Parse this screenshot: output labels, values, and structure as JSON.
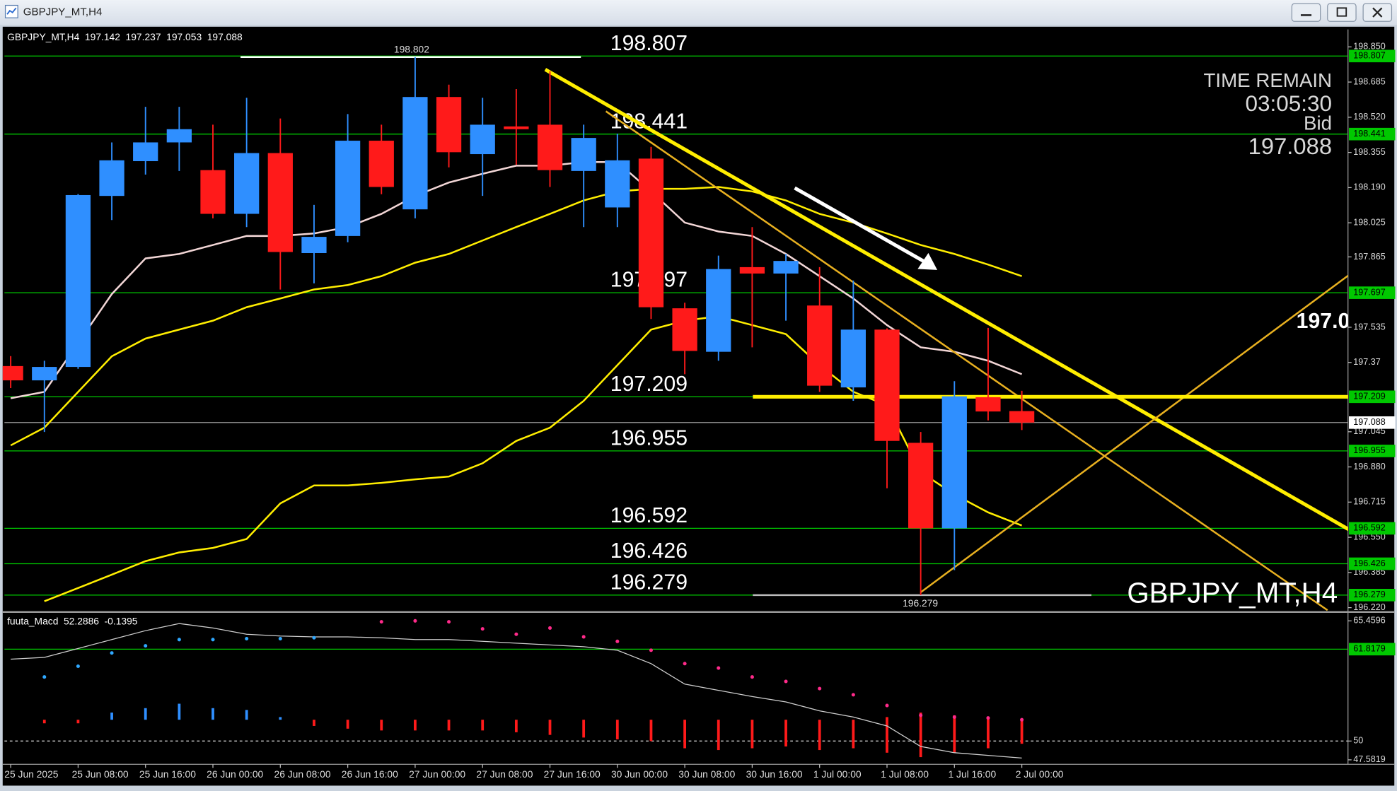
{
  "window": {
    "title": "GBPJPY_MT,H4"
  },
  "chart_data": {
    "type": "candlestick",
    "symbol": "GBPJPY_MT,H4",
    "categories": [
      "25 Jun 2025",
      null,
      "25 Jun 08:00",
      null,
      "25 Jun 16:00",
      null,
      "26 Jun 00:00",
      null,
      "26 Jun 08:00",
      null,
      "26 Jun 16:00",
      null,
      "27 Jun 00:00",
      null,
      "27 Jun 08:00",
      null,
      "27 Jun 16:00",
      null,
      "30 Jun 00:00",
      null,
      "30 Jun 08:00",
      null,
      "30 Jun 16:00",
      null,
      "1 Jul 00:00",
      null,
      "1 Jul 08:00",
      null,
      "1 Jul 16:00",
      null,
      "2 Jul 00:00"
    ],
    "open": [
      197.353,
      197.286,
      197.349,
      198.151,
      198.314,
      198.402,
      198.272,
      198.067,
      198.352,
      197.883,
      197.963,
      198.41,
      198.088,
      198.615,
      198.347,
      198.477,
      198.485,
      198.268,
      198.097,
      198.326,
      197.624,
      197.42,
      197.817,
      197.787,
      197.637,
      197.253,
      197.524,
      196.993,
      196.592,
      197.207,
      197.142
    ],
    "high": [
      197.4,
      197.378,
      198.16,
      198.402,
      198.569,
      198.569,
      198.485,
      198.611,
      198.514,
      198.109,
      198.535,
      198.485,
      198.802,
      198.673,
      198.611,
      198.652,
      198.736,
      198.485,
      198.443,
      198.381,
      197.65,
      197.871,
      198.005,
      197.879,
      197.817,
      197.754,
      197.53,
      197.044,
      197.282,
      197.532,
      197.237
    ],
    "low": [
      197.25,
      197.044,
      197.34,
      198.038,
      198.251,
      198.268,
      198.046,
      198.005,
      197.712,
      197.741,
      197.934,
      198.159,
      198.046,
      198.285,
      198.151,
      198.297,
      198.193,
      198.005,
      198.005,
      197.574,
      197.315,
      197.378,
      197.441,
      197.566,
      197.232,
      197.19,
      196.78,
      196.279,
      196.396,
      197.098,
      197.053
    ],
    "close": [
      197.286,
      197.349,
      198.155,
      198.318,
      198.402,
      198.464,
      198.067,
      198.352,
      197.888,
      197.959,
      198.41,
      198.193,
      198.615,
      198.356,
      198.485,
      198.464,
      198.272,
      198.423,
      198.318,
      197.629,
      197.424,
      197.808,
      197.787,
      197.846,
      197.261,
      197.524,
      197.002,
      196.592,
      197.211,
      197.14,
      197.088
    ],
    "colors": {
      "up": "#2f8fff",
      "down": "#ff1a1a"
    },
    "ylim": [
      196.204,
      198.932
    ],
    "yticks": [
      {
        "value": 198.85,
        "label": "198.850"
      },
      198.685,
      {
        "value": 198.52,
        "label": "198.520"
      },
      198.355,
      {
        "value": 198.19,
        "label": "198.190"
      },
      198.025,
      197.865,
      197.535,
      197.37,
      197.045,
      {
        "value": 196.88,
        "label": "196.880"
      },
      196.715,
      {
        "value": 196.55,
        "label": "196.550"
      },
      196.385,
      {
        "value": 196.22,
        "label": "196.220"
      }
    ],
    "levels": [
      198.807,
      198.441,
      197.697,
      197.209,
      196.955,
      196.592,
      196.426,
      196.279
    ],
    "level_color": "#00c800",
    "bid": 197.088,
    "high_mark": 198.802,
    "low_mark": 196.279,
    "timer": {
      "label": "TIME REMAIN",
      "remaining": "03:05:30",
      "bid_label": "Bid"
    },
    "lines": [
      {
        "color": "#f2d6d6",
        "width": 2,
        "values": [
          197.202,
          197.232,
          197.461,
          197.691,
          197.858,
          197.879,
          197.921,
          197.963,
          197.963,
          197.975,
          198.005,
          198.067,
          198.151,
          198.214,
          198.255,
          198.293,
          198.293,
          198.31,
          198.31,
          198.172,
          198.026,
          197.984,
          197.963,
          197.879,
          197.775,
          197.67,
          197.545,
          197.441,
          197.42,
          197.378,
          197.315
        ]
      },
      {
        "color": "#ffee00",
        "width": 2,
        "values": [
          196.981,
          197.064,
          197.232,
          197.399,
          197.482,
          197.524,
          197.566,
          197.629,
          197.67,
          197.712,
          197.733,
          197.775,
          197.838,
          197.879,
          197.942,
          198.005,
          198.067,
          198.13,
          198.172,
          198.184,
          198.184,
          198.193,
          198.172,
          198.13,
          198.067,
          198.026,
          197.975,
          197.921,
          197.879,
          197.829,
          197.775
        ]
      },
      {
        "color": "#ffee00",
        "width": 2,
        "values": [
          null,
          196.25,
          196.312,
          196.375,
          196.438,
          196.479,
          196.5,
          196.542,
          196.709,
          196.793,
          196.793,
          196.805,
          196.822,
          196.835,
          196.897,
          197.002,
          197.064,
          197.19,
          197.357,
          197.524,
          197.566,
          197.587,
          197.545,
          197.503,
          197.357,
          197.232,
          197.169,
          196.856,
          196.751,
          196.667,
          196.605
        ]
      }
    ],
    "trendlines": [
      {
        "x": [
          15.86,
          39.73
        ],
        "y": [
          198.744,
          196.584
        ],
        "color": "#ffee00",
        "width": 4
      },
      {
        "x": [
          17.66,
          39.07
        ],
        "y": [
          198.548,
          196.208
        ],
        "color": "#e8b020",
        "width": 2
      },
      {
        "x": [
          26.99,
          39.73
        ],
        "y": [
          196.291,
          197.783
        ],
        "color": "#e8b020",
        "width": 2
      },
      {
        "x": [
          22.02,
          39.73
        ],
        "y": [
          197.209,
          197.209
        ],
        "color": "#ffee00",
        "width": 4
      }
    ],
    "indicator": {
      "name": "fuuta_Macd",
      "readings": [
        52.2886,
        -0.1395
      ],
      "ylim": [
        47.01,
        66.49
      ],
      "yticks": [
        65.4596,
        50,
        47.5819
      ],
      "level": 61.8179,
      "line": {
        "color": "#cfcfcf",
        "values": [
          60.53,
          60.76,
          61.91,
          63.05,
          64.2,
          65.12,
          64.54,
          63.74,
          63.51,
          63.4,
          63.4,
          63.28,
          63.05,
          63.05,
          62.82,
          62.59,
          62.37,
          62.14,
          61.68,
          59.96,
          57.32,
          56.52,
          55.72,
          55.03,
          53.89,
          53.08,
          51.94,
          49.3,
          48.5,
          48.16,
          47.81
        ]
      },
      "dots": [
        {
          "color": "#2fa8ff",
          "values": [
            null,
            58.24,
            59.62,
            61.33,
            62.25,
            63.05,
            63.05,
            63.17,
            63.17,
            63.28,
            null,
            null,
            null,
            null,
            null,
            null,
            null,
            null,
            null,
            null,
            null,
            null,
            null,
            null,
            null,
            null,
            null,
            null,
            null,
            null,
            null
          ]
        },
        {
          "color": "#ff2a8a",
          "values": [
            null,
            null,
            null,
            null,
            null,
            null,
            null,
            null,
            null,
            null,
            null,
            65.34,
            65.46,
            65.34,
            64.43,
            63.74,
            64.54,
            63.4,
            62.82,
            61.68,
            59.96,
            59.39,
            58.24,
            57.67,
            56.75,
            55.95,
            54.57,
            53.31,
            53.08,
            52.97,
            52.74
          ]
        }
      ],
      "histogram": [
        {
          "color": "#ff1a1a",
          "high": [
            null,
            52.74,
            52.74,
            null,
            null,
            null,
            null,
            null,
            null,
            52.74,
            52.74,
            52.74,
            52.74,
            52.74,
            52.74,
            52.74,
            52.74,
            52.74,
            52.74,
            52.74,
            52.74,
            52.74,
            52.74,
            52.74,
            52.74,
            52.74,
            53.08,
            53.66,
            53.31,
            53.08,
            52.74
          ],
          "low": [
            null,
            52.28,
            52.28,
            null,
            null,
            null,
            null,
            null,
            null,
            51.94,
            51.59,
            51.36,
            51.36,
            51.36,
            51.36,
            51.13,
            50.79,
            50.45,
            50.22,
            49.99,
            49.07,
            48.84,
            49.07,
            49.3,
            48.84,
            49.07,
            48.5,
            47.93,
            48.5,
            49.07,
            49.65
          ]
        },
        {
          "color": "#2f8fff",
          "high": [
            null,
            null,
            null,
            53.66,
            54.23,
            54.8,
            54.23,
            54,
            53.08,
            null,
            null,
            null,
            null,
            null,
            null,
            null,
            null,
            null,
            null,
            null,
            null,
            null,
            null,
            null,
            null,
            null,
            null,
            null,
            null,
            null,
            null
          ],
          "low": [
            null,
            null,
            null,
            52.74,
            52.74,
            52.74,
            52.74,
            52.74,
            52.74,
            null,
            null,
            null,
            null,
            null,
            null,
            null,
            null,
            null,
            null,
            null,
            null,
            null,
            null,
            null,
            null,
            null,
            null,
            null,
            null,
            null,
            null
          ]
        }
      ]
    }
  }
}
